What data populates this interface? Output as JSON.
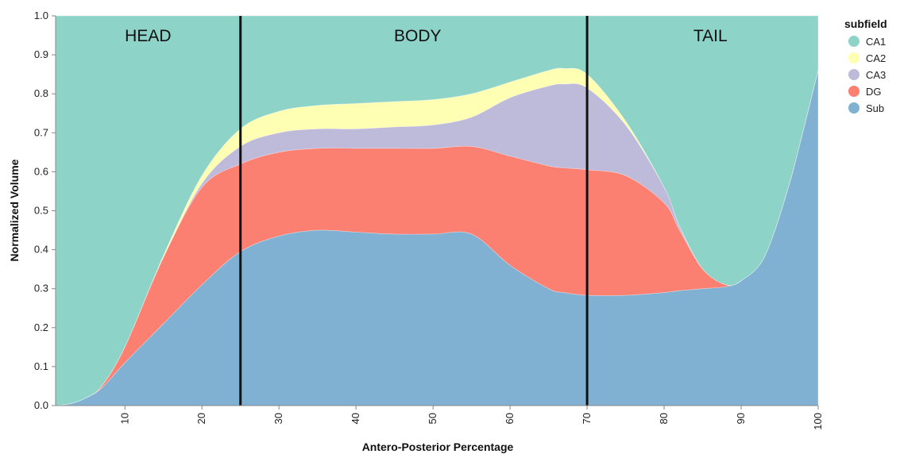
{
  "chart_data": {
    "type": "area",
    "stacked": true,
    "normalized": true,
    "xlabel": "Antero-Posterior Percentage",
    "ylabel": "Normalized Volume",
    "xlim": [
      1,
      100
    ],
    "ylim": [
      0,
      1
    ],
    "x_ticks": [
      10,
      20,
      30,
      40,
      50,
      60,
      70,
      80,
      90,
      100
    ],
    "y_ticks": [
      0.0,
      0.1,
      0.2,
      0.3,
      0.4,
      0.5,
      0.6,
      0.7,
      0.8,
      0.9,
      1.0
    ],
    "grid": true,
    "legend": {
      "title": "subfield",
      "position": "right-top"
    },
    "x": [
      1,
      3,
      5,
      7,
      10,
      15,
      20,
      25,
      30,
      35,
      40,
      45,
      50,
      55,
      60,
      65,
      67,
      70,
      75,
      80,
      82,
      85,
      88,
      90,
      93,
      96,
      98,
      100
    ],
    "cumulative_boundaries": {
      "Sub": [
        0.0,
        0.005,
        0.02,
        0.045,
        0.11,
        0.21,
        0.31,
        0.395,
        0.435,
        0.45,
        0.445,
        0.44,
        0.44,
        0.44,
        0.36,
        0.3,
        0.29,
        0.283,
        0.283,
        0.29,
        0.295,
        0.3,
        0.305,
        0.32,
        0.38,
        0.55,
        0.7,
        0.86
      ],
      "DG": [
        0.0,
        0.005,
        0.02,
        0.05,
        0.15,
        0.38,
        0.56,
        0.62,
        0.65,
        0.66,
        0.66,
        0.66,
        0.66,
        0.665,
        0.64,
        0.615,
        0.61,
        0.605,
        0.59,
        0.52,
        0.45,
        0.35,
        0.31,
        0.32,
        0.38,
        0.55,
        0.7,
        0.86
      ],
      "CA3": [
        0.0,
        0.005,
        0.02,
        0.05,
        0.15,
        0.38,
        0.57,
        0.665,
        0.7,
        0.71,
        0.71,
        0.715,
        0.72,
        0.74,
        0.79,
        0.82,
        0.825,
        0.815,
        0.72,
        0.56,
        0.46,
        0.35,
        0.31,
        0.32,
        0.38,
        0.55,
        0.7,
        0.86
      ],
      "CA2": [
        0.0,
        0.005,
        0.02,
        0.05,
        0.15,
        0.385,
        0.59,
        0.71,
        0.755,
        0.77,
        0.775,
        0.78,
        0.785,
        0.8,
        0.83,
        0.86,
        0.865,
        0.85,
        0.73,
        0.56,
        0.46,
        0.35,
        0.31,
        0.32,
        0.38,
        0.55,
        0.7,
        0.86
      ],
      "CA1": [
        1,
        1,
        1,
        1,
        1,
        1,
        1,
        1,
        1,
        1,
        1,
        1,
        1,
        1,
        1,
        1,
        1,
        1,
        1,
        1,
        1,
        1,
        1,
        1,
        1,
        1,
        1,
        1
      ]
    },
    "series": [
      {
        "name": "CA1",
        "color": "#8dd3c7"
      },
      {
        "name": "CA2",
        "color": "#ffffb3"
      },
      {
        "name": "CA3",
        "color": "#bebada"
      },
      {
        "name": "DG",
        "color": "#fb8072"
      },
      {
        "name": "Sub",
        "color": "#80b1d3"
      }
    ],
    "stack_order": [
      "Sub",
      "DG",
      "CA3",
      "CA2",
      "CA1"
    ],
    "dividers": [
      25,
      70
    ],
    "region_labels": [
      {
        "text": "HEAD",
        "x": 13
      },
      {
        "text": "BODY",
        "x": 48
      },
      {
        "text": "TAIL",
        "x": 86
      }
    ]
  }
}
